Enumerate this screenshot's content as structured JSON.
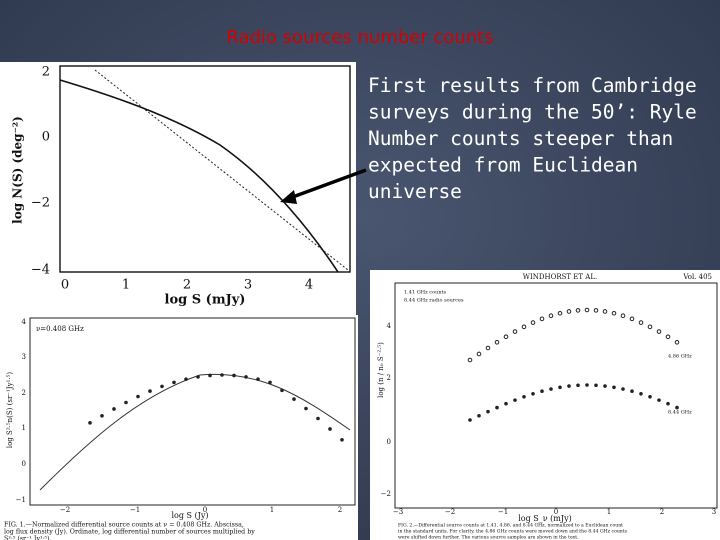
{
  "slide": {
    "title": "Radio sources number counts",
    "text_lines": [
      "First results from Cambridge",
      "surveys during the 50’: Ryle",
      "Number counts steeper than",
      "expected from Euclidean",
      "universe"
    ],
    "figure_ryle": {
      "y_label": "log N(S) (deg⁻²)",
      "x_label": "log S (mJy)",
      "y_ticks": [
        "2",
        "0",
        "−2",
        "−4"
      ],
      "x_ticks": [
        "0",
        "1",
        "2",
        "3",
        "4"
      ]
    },
    "figure_408": {
      "annotation": "ν=0.408 GHz",
      "y_label": "log S²·⁵n(S) (sr⁻¹Jy¹·⁵)",
      "x_label": "log S (Jy)",
      "y_ticks": [
        "4",
        "3",
        "2",
        "1",
        "0",
        "−1"
      ],
      "x_ticks": [
        "−2",
        "−1",
        "0",
        "1",
        "2"
      ],
      "caption": [
        "FIG. 1.—Normalized differential source counts at ν = 0.408 GHz. Abscissa,",
        "log flux density (Jy). Ordinate, log differential number of sources multiplied by",
        "S²·⁵ (sr⁻¹ Jy¹·⁵)."
      ]
    },
    "figure_windhorst": {
      "header": "WINDHORST ET AL.",
      "volume": "Vol. 405",
      "legend": [
        "1.41 GHz counts",
        "8.44 GHz radio sources"
      ],
      "labels": [
        "4.86 GHz",
        "8.44 GHz"
      ],
      "y_label": "log (n / n₀ S⁻²·⁵)",
      "x_label": "log S_ν (mJy)",
      "y_ticks": [
        "4",
        "2",
        "0",
        "−2"
      ],
      "x_ticks": [
        "−3",
        "−2",
        "−1",
        "0",
        "1",
        "2",
        "3"
      ],
      "caption": [
        "FIG. 2.—Differential source counts at 1.41, 4.86, and 8.44 GHz, normalized to a Euclidean count",
        "in the standard units. For clarity, the 4.86 GHz counts were moved down and the 8.44 GHz counts",
        "were shifted down further. The various source samples are shown in the text."
      ]
    }
  }
}
